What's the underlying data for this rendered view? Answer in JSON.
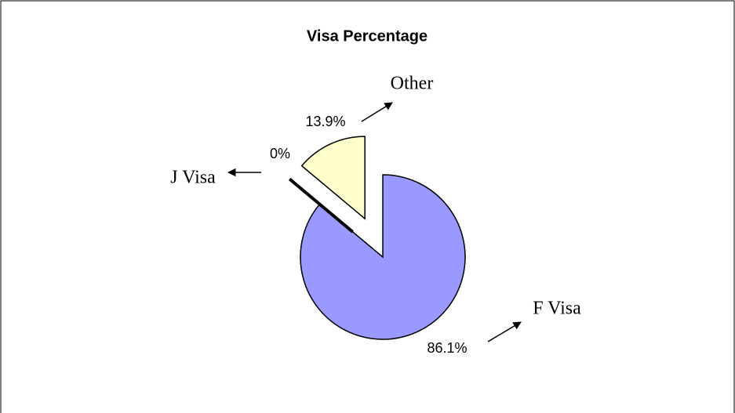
{
  "chart_data": {
    "type": "pie",
    "title": "Visa Percentage",
    "categories": [
      "F Visa",
      "J Visa",
      "Other"
    ],
    "values": [
      86.1,
      0,
      13.9
    ],
    "value_labels": [
      "86.1%",
      "0%",
      "13.9%"
    ],
    "colors": [
      "#9999ff",
      "#000000",
      "#ffffcc"
    ]
  }
}
